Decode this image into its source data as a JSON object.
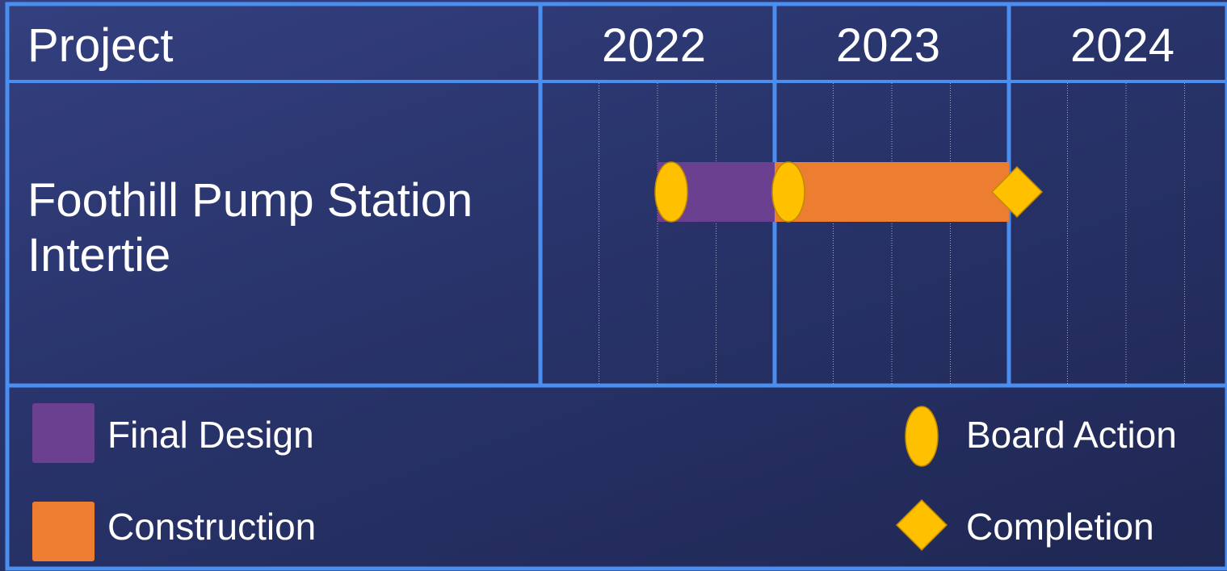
{
  "header": {
    "project_label": "Project",
    "years": [
      "2022",
      "2023",
      "2024"
    ]
  },
  "project": {
    "name": "Foothill Pump Station Intertie"
  },
  "chart_data": {
    "type": "gantt",
    "time_axis": {
      "years": [
        "2022",
        "2023",
        "2024"
      ],
      "subdivisions_per_year": 4,
      "start": 2022.0,
      "end": 2025.0
    },
    "tasks": [
      {
        "project": "Foothill Pump Station Intertie",
        "phase": "Final Design",
        "start": 2022.5,
        "end": 2023.0,
        "color": "#6b4090"
      },
      {
        "project": "Foothill Pump Station Intertie",
        "phase": "Construction",
        "start": 2023.0,
        "end": 2024.0,
        "color": "#ed7d31"
      }
    ],
    "milestones": [
      {
        "type": "Board Action",
        "date": 2022.5,
        "shape": "oval",
        "color": "#ffc000"
      },
      {
        "type": "Board Action",
        "date": 2023.0,
        "shape": "oval",
        "color": "#ffc000"
      },
      {
        "type": "Completion",
        "date": 2024.0,
        "shape": "diamond",
        "color": "#ffc000"
      }
    ]
  },
  "legend": {
    "final_design": {
      "label": "Final Design",
      "color": "#6b4090"
    },
    "construction": {
      "label": "Construction",
      "color": "#ed7d31"
    },
    "board_action": {
      "label": "Board Action",
      "color": "#ffc000"
    },
    "completion": {
      "label": "Completion",
      "color": "#ffc000"
    }
  },
  "colors": {
    "grid_line": "#4a8ef0",
    "background": "#2b356e"
  }
}
